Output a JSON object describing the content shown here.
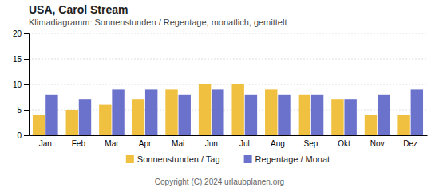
{
  "chart_data": {
    "type": "bar",
    "title": "USA, Carol Stream",
    "subtitle": "Klimadiagramm: Sonnenstunden / Regentage, monatlich, gemittelt",
    "categories": [
      "Jan",
      "Feb",
      "Mar",
      "Apr",
      "Mai",
      "Jun",
      "Jul",
      "Aug",
      "Sep",
      "Okt",
      "Nov",
      "Dez"
    ],
    "series": [
      {
        "name": "Sonnenstunden / Tag",
        "color": "#F0C040",
        "values": [
          4,
          5,
          6,
          7,
          9,
          10,
          10,
          9,
          8,
          7,
          4,
          4
        ]
      },
      {
        "name": "Regentage / Monat",
        "color": "#6B72CC",
        "values": [
          8,
          7,
          9,
          9,
          8,
          9,
          8,
          8,
          8,
          7,
          8,
          9
        ]
      }
    ],
    "ylim": [
      0,
      20
    ],
    "yticks": [
      0,
      5,
      10,
      15,
      20
    ],
    "grid": true,
    "legend": "bottom",
    "annotations": [
      "Copyright (C) 2024 urlaubplanen.org"
    ]
  }
}
